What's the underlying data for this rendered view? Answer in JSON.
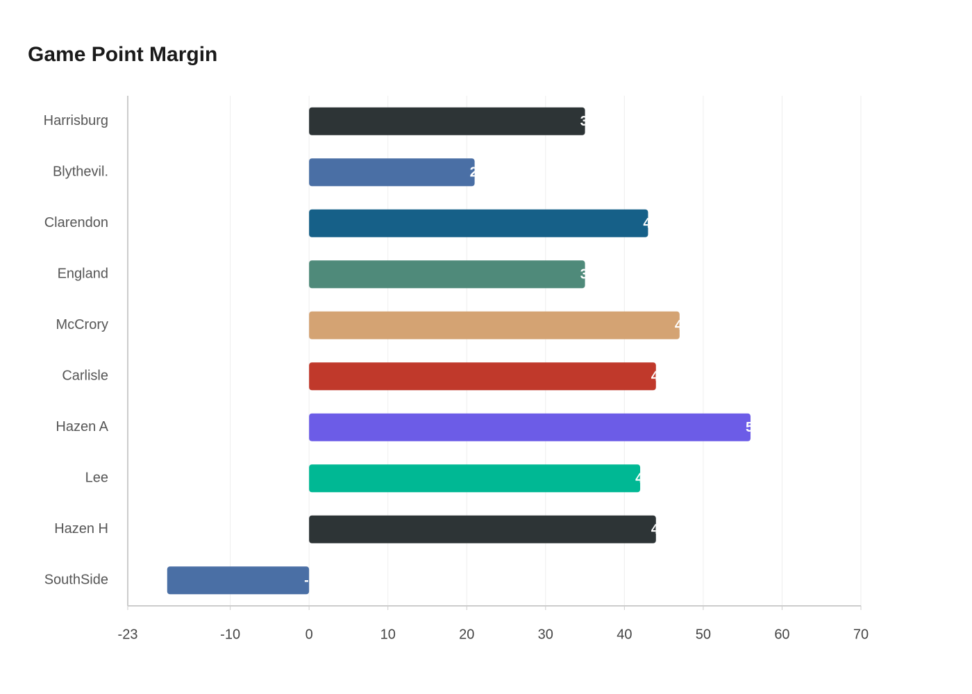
{
  "chart_data": {
    "type": "bar",
    "orientation": "horizontal",
    "title": "Game Point Margin",
    "categories": [
      "Harrisburg",
      "Blythevil.",
      "Clarendon",
      "England",
      "McCrory",
      "Carlisle",
      "Hazen A",
      "Lee",
      "Hazen H",
      "SouthSide"
    ],
    "values": [
      35,
      21,
      43,
      35,
      47,
      44,
      56,
      42,
      44,
      -18
    ],
    "colors": [
      "#2d3436",
      "#4a6fa5",
      "#166088",
      "#4f8a7a",
      "#d4a373",
      "#c0392b",
      "#6c5ce7",
      "#00b894",
      "#2d3436",
      "#4a6fa5"
    ],
    "xlim": [
      -23,
      70
    ],
    "xticks": [
      -23,
      -10,
      0,
      10,
      20,
      30,
      40,
      50,
      60,
      70
    ],
    "grid": true
  }
}
